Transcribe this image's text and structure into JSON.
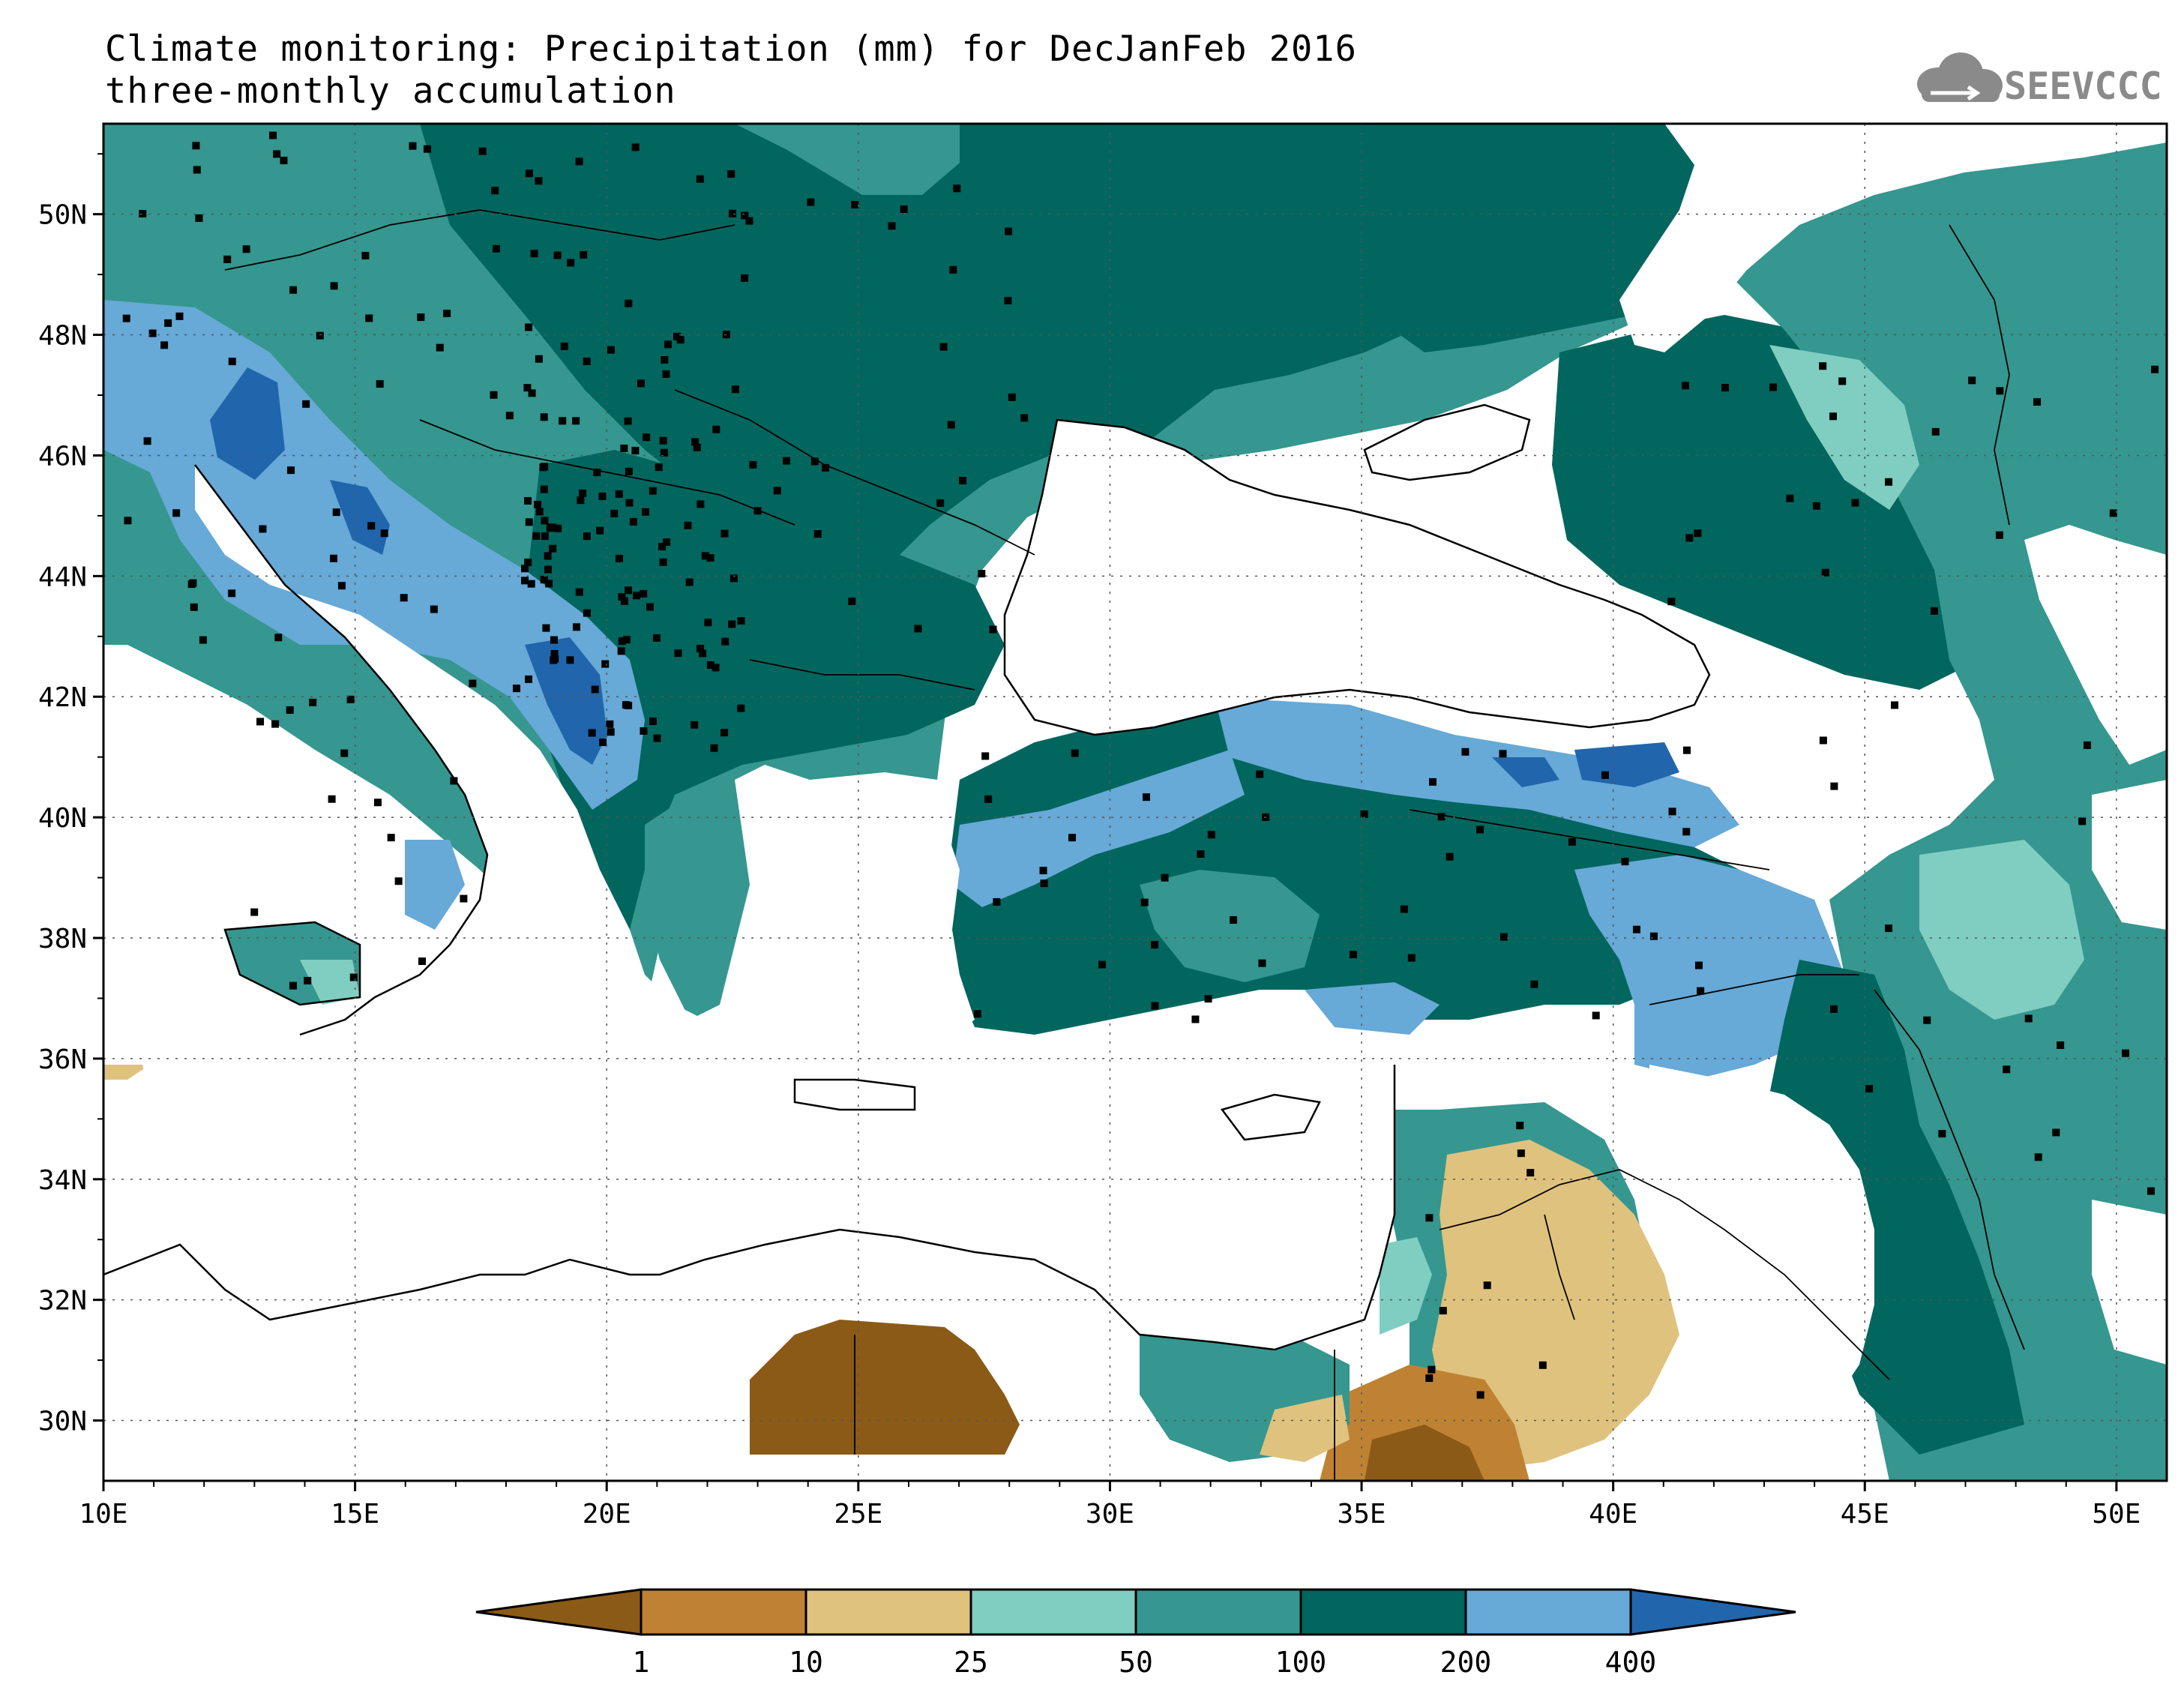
{
  "header": {
    "title": "Climate monitoring: Precipitation (mm) for DecJanFeb 2016",
    "subtitle": "three-monthly accumulation"
  },
  "logo": {
    "text": "SEEVCCC",
    "icon": "cloud-icon",
    "color": "#8a8a8a"
  },
  "map": {
    "lon_range": [
      10,
      51
    ],
    "lat_range": [
      29,
      51.5
    ],
    "x_ticks": [
      "10E",
      "15E",
      "20E",
      "25E",
      "30E",
      "35E",
      "40E",
      "45E",
      "50E"
    ],
    "y_ticks": [
      "30N",
      "32N",
      "34N",
      "36N",
      "38N",
      "40N",
      "42N",
      "44N",
      "46N",
      "48N",
      "50N"
    ]
  },
  "legend": {
    "labels": [
      "1",
      "10",
      "25",
      "50",
      "100",
      "200",
      "400"
    ],
    "colors": [
      "#8b5a16",
      "#bf8233",
      "#dfc27d",
      "#80cdc1",
      "#35978f",
      "#01665e",
      "#67a9d7",
      "#2166ac"
    ]
  },
  "palette": {
    "c10_25": "#dfc27d",
    "c1_10": "#bf8233",
    "lt1": "#8b5a16",
    "c25_50": "#80cdc1",
    "c50_100": "#35978f",
    "c100_200": "#01665e",
    "c200_400": "#67a9d7",
    "gt400": "#2166ac"
  }
}
